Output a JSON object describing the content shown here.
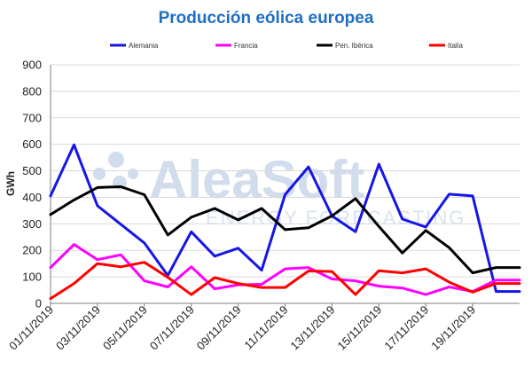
{
  "chart_data": {
    "type": "line",
    "title": "Producción eólica europea",
    "ylabel": "GWh",
    "xlabel": "",
    "ylim": [
      0,
      900
    ],
    "yticks": [
      0,
      100,
      200,
      300,
      400,
      500,
      600,
      700,
      800,
      900
    ],
    "grid": true,
    "legend_position": "top",
    "x": [
      "01/11/2019",
      "02/11/2019",
      "03/11/2019",
      "04/11/2019",
      "05/11/2019",
      "06/11/2019",
      "07/11/2019",
      "08/11/2019",
      "09/11/2019",
      "10/11/2019",
      "11/11/2019",
      "12/11/2019",
      "13/11/2019",
      "14/11/2019",
      "15/11/2019",
      "16/11/2019",
      "17/11/2019",
      "18/11/2019",
      "19/11/2019",
      "20/11/2019",
      "21/11/2019"
    ],
    "xtick_labels": [
      "01/11/2019",
      "03/11/2019",
      "05/11/2019",
      "07/11/2019",
      "09/11/2019",
      "11/11/2019",
      "13/11/2019",
      "15/11/2019",
      "17/11/2019",
      "19/11/2019"
    ],
    "series": [
      {
        "name": "Alemania",
        "color": "#1616e6",
        "values": [
          405,
          598,
          368,
          298,
          228,
          105,
          270,
          178,
          208,
          125,
          410,
          515,
          330,
          270,
          525,
          318,
          288,
          412,
          405,
          45,
          45
        ]
      },
      {
        "name": "Francia",
        "color": "#ff00ff",
        "values": [
          135,
          222,
          165,
          183,
          85,
          62,
          138,
          55,
          70,
          72,
          130,
          135,
          92,
          85,
          65,
          58,
          33,
          62,
          45,
          88,
          88
        ]
      },
      {
        "name": "Pen. Ibérica",
        "color": "#000000",
        "values": [
          335,
          390,
          437,
          440,
          410,
          258,
          325,
          358,
          315,
          358,
          278,
          285,
          330,
          395,
          290,
          190,
          275,
          210,
          115,
          135,
          135
        ]
      },
      {
        "name": "Italia",
        "color": "#ff0000",
        "values": [
          18,
          75,
          150,
          138,
          155,
          98,
          33,
          97,
          75,
          60,
          60,
          122,
          120,
          33,
          123,
          115,
          130,
          80,
          42,
          75,
          75
        ]
      }
    ]
  },
  "watermark": {
    "brand": "AleaSoft",
    "tagline": "ENERGY FORECASTING"
  },
  "colors": {
    "title": "#1f6fc5",
    "grid": "#d9d9d9",
    "axis": "#7f7f7f"
  }
}
